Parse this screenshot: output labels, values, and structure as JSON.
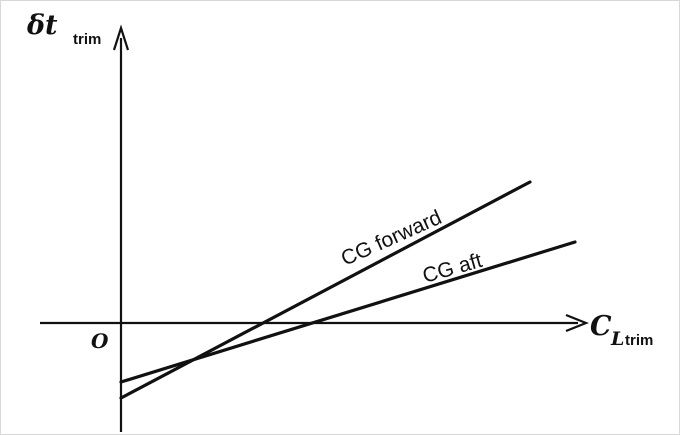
{
  "diagram": {
    "y_axis_label": {
      "symbol": "δt",
      "subscript": "trim"
    },
    "x_axis_label": {
      "symbol": "C",
      "sub_italic": "L",
      "subscript": "trim"
    },
    "origin_label": "O",
    "lines": [
      {
        "name": "CG forward",
        "label": "CG forward"
      },
      {
        "name": "CG aft",
        "label": "CG aft"
      }
    ],
    "colors": {
      "ink": "#111111",
      "background": "#ffffff",
      "border": "#d8d8d8"
    }
  }
}
